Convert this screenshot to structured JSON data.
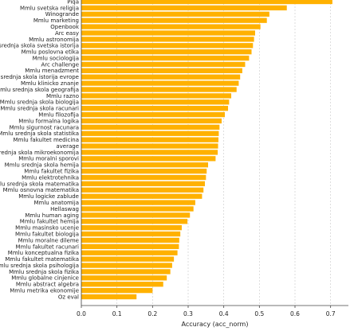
{
  "chart_data": {
    "type": "bar",
    "orientation": "horizontal",
    "xlabel": "Accuracy (acc_norm)",
    "xlim": [
      0,
      0.75
    ],
    "xticks": [
      "0.0",
      "0.1",
      "0.2",
      "0.3",
      "0.4",
      "0.5",
      "0.6",
      "0.7"
    ],
    "grid": "vertical dashed",
    "bar_color": "#FFB100",
    "categories": [
      "Piqa",
      "Mmlu svetska religija",
      "Winogrande",
      "Mmlu marketing",
      "Openbook",
      "Arc easy",
      "Mmlu astronomija",
      "Mmlu srednja skola svetska istorija",
      "Mmlu poslovna etika",
      "Mmlu sociologija",
      "Arc challenge",
      "Mmlu menadzment",
      "Mmlu srednja skola istorija evrope",
      "Mmlu klinicko znanje",
      "Mmlu srednja skola geografija",
      "Mmlu razno",
      "Mmlu srednja skola biologija",
      "Mmlu srednja skola racunari",
      "Mmlu filozofija",
      "Mmlu formalna logika",
      "Mmlu sigurnost racunara",
      "Mmlu srednja skola statistika",
      "Mmlu fakultet medicina",
      "average",
      "Mmlu srednja skola mikroekonomija",
      "Mmlu moralni sporovi",
      "Mmlu srednja skola hemija",
      "Mmlu fakultet fizika",
      "Mmlu elektrotehnika",
      "Mmlu srednja skola matematika",
      "Mmlu osnovna matematika",
      "Mmlu logicke zablude",
      "Mmlu anatomija",
      "Hellaswag",
      "Mmlu human aging",
      "Mmlu fakultet hemija",
      "Mmlu masinsko ucenje",
      "Mmlu fakultet biologija",
      "Mmlu moralne dileme",
      "Mmlu fakultet racunari",
      "Mmlu konceptualna fizika",
      "Mmlu fakultet matematika",
      "Mmlu srednja skola psihologija",
      "Mmlu srednja skola fizika",
      "Mmlu globalne cinjenice",
      "Mmlu abstract algebra",
      "Mmlu metrika ekonomije",
      "Oz eval"
    ],
    "values": [
      0.705,
      0.577,
      0.528,
      0.521,
      0.503,
      0.488,
      0.485,
      0.482,
      0.478,
      0.471,
      0.46,
      0.452,
      0.446,
      0.442,
      0.436,
      0.421,
      0.415,
      0.412,
      0.403,
      0.394,
      0.388,
      0.386,
      0.385,
      0.384,
      0.383,
      0.377,
      0.356,
      0.352,
      0.35,
      0.347,
      0.343,
      0.339,
      0.32,
      0.315,
      0.305,
      0.298,
      0.282,
      0.278,
      0.275,
      0.274,
      0.27,
      0.26,
      0.255,
      0.25,
      0.24,
      0.23,
      0.2,
      0.155
    ]
  }
}
